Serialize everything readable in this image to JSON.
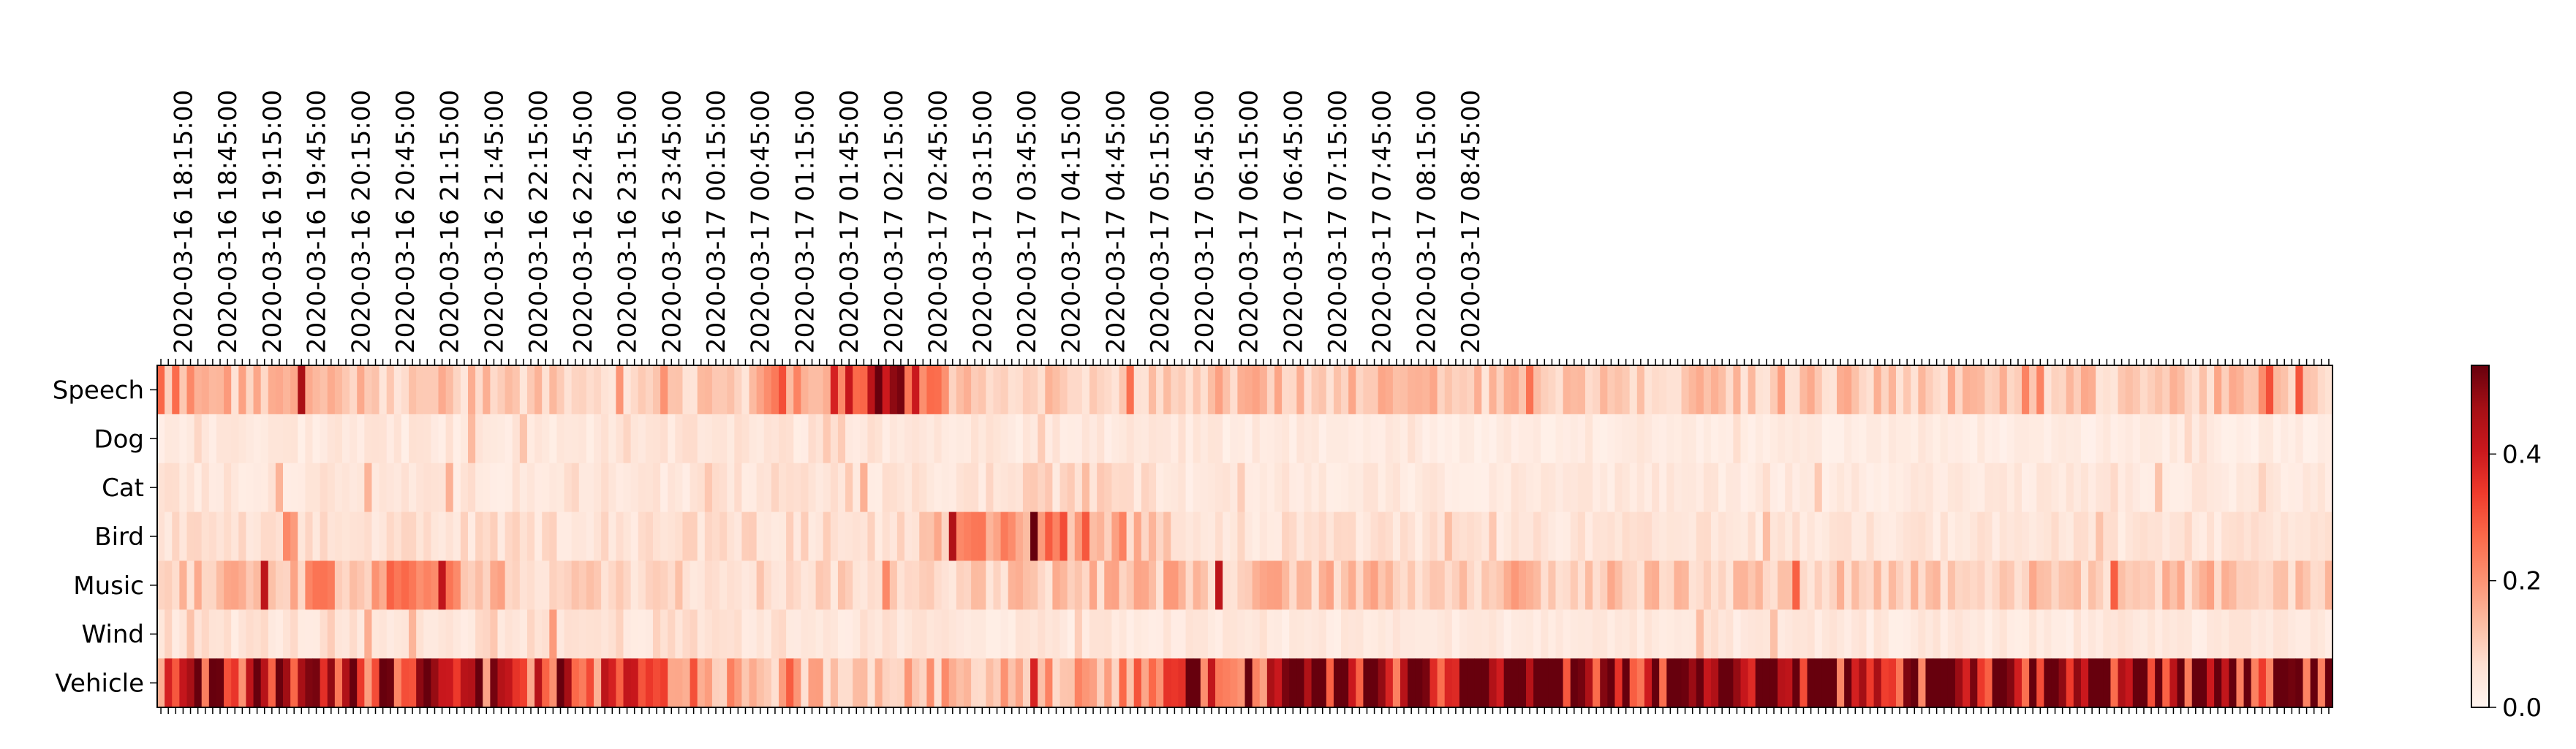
{
  "chart_data": {
    "type": "heatmap",
    "title": "",
    "xlabel": "",
    "ylabel": "",
    "rows": [
      "Speech",
      "Dog",
      "Cat",
      "Bird",
      "Music",
      "Wind",
      "Vehicle"
    ],
    "x_tick_labels": [
      "2020-03-16 18:15:00",
      "2020-03-16 18:45:00",
      "2020-03-16 19:15:00",
      "2020-03-16 19:45:00",
      "2020-03-16 20:15:00",
      "2020-03-16 20:45:00",
      "2020-03-16 21:15:00",
      "2020-03-16 21:45:00",
      "2020-03-16 22:15:00",
      "2020-03-16 22:45:00",
      "2020-03-16 23:15:00",
      "2020-03-16 23:45:00",
      "2020-03-17 00:15:00",
      "2020-03-17 00:45:00",
      "2020-03-17 01:15:00",
      "2020-03-17 01:45:00",
      "2020-03-17 02:15:00",
      "2020-03-17 02:45:00",
      "2020-03-17 03:15:00",
      "2020-03-17 03:45:00",
      "2020-03-17 04:15:00",
      "2020-03-17 04:45:00",
      "2020-03-17 05:15:00",
      "2020-03-17 05:45:00",
      "2020-03-17 06:15:00",
      "2020-03-17 06:45:00",
      "2020-03-17 07:15:00",
      "2020-03-17 07:45:00",
      "2020-03-17 08:15:00",
      "2020-03-17 08:45:00"
    ],
    "x_tick_position": "top",
    "x_tick_rotation": 90,
    "colormap": "Reds",
    "colorbar": {
      "vmin": 0.0,
      "vmax": 0.54,
      "ticks": [
        0.0,
        0.2,
        0.4
      ],
      "tick_labels": [
        "0.0",
        "0.2",
        "0.4"
      ],
      "placement": "right"
    },
    "colors": {
      "low": "#fff5f0",
      "mid": "#fb6a4a",
      "high": "#67000d"
    },
    "column_count": 294,
    "column_interval_minutes": 5,
    "profiles": {
      "Speech": [
        {
          "x": "2020-03-16 18:00:00",
          "value": 0.2
        },
        {
          "x": "2020-03-16 18:30:00",
          "value": 0.12
        },
        {
          "x": "2020-03-16 19:30:00",
          "value": 0.14
        },
        {
          "x": "2020-03-16 20:30:00",
          "value": 0.11
        },
        {
          "x": "2020-03-16 22:00:00",
          "value": 0.1
        },
        {
          "x": "2020-03-17 00:30:00",
          "value": 0.09
        },
        {
          "x": "2020-03-17 01:05:00",
          "value": 0.22
        },
        {
          "x": "2020-03-17 01:15:00",
          "value": 0.16
        },
        {
          "x": "2020-03-17 02:15:00",
          "value": 0.38
        },
        {
          "x": "2020-03-17 03:00:00",
          "value": 0.1
        },
        {
          "x": "2020-03-17 06:00:00",
          "value": 0.12
        },
        {
          "x": "2020-03-17 09:05:00",
          "value": 0.11
        }
      ],
      "Dog": [
        {
          "x": "2020-03-16 18:00:00",
          "value": 0.04
        },
        {
          "x": "2020-03-17 01:10:00",
          "value": 0.05
        },
        {
          "x": "2020-03-17 09:05:00",
          "value": 0.03
        }
      ],
      "Cat": [
        {
          "x": "2020-03-16 18:00:00",
          "value": 0.05
        },
        {
          "x": "2020-03-17 03:00:00",
          "value": 0.05
        },
        {
          "x": "2020-03-17 04:30:00",
          "value": 0.09
        },
        {
          "x": "2020-03-17 05:30:00",
          "value": 0.04
        },
        {
          "x": "2020-03-17 09:05:00",
          "value": 0.04
        }
      ],
      "Bird": [
        {
          "x": "2020-03-16 18:00:00",
          "value": 0.06
        },
        {
          "x": "2020-03-17 02:30:00",
          "value": 0.07
        },
        {
          "x": "2020-03-17 03:00:00",
          "value": 0.15
        },
        {
          "x": "2020-03-17 04:20:00",
          "value": 0.24
        },
        {
          "x": "2020-03-17 05:00:00",
          "value": 0.14
        },
        {
          "x": "2020-03-17 05:30:00",
          "value": 0.06
        },
        {
          "x": "2020-03-17 09:05:00",
          "value": 0.05
        }
      ],
      "Music": [
        {
          "x": "2020-03-16 18:00:00",
          "value": 0.1
        },
        {
          "x": "2020-03-16 21:15:00",
          "value": 0.22
        },
        {
          "x": "2020-03-16 22:00:00",
          "value": 0.09
        },
        {
          "x": "2020-03-17 02:00:00",
          "value": 0.08
        },
        {
          "x": "2020-03-17 05:15:00",
          "value": 0.13
        },
        {
          "x": "2020-03-17 07:00:00",
          "value": 0.12
        },
        {
          "x": "2020-03-17 09:05:00",
          "value": 0.11
        }
      ],
      "Wind": [
        {
          "x": "2020-03-16 18:00:00",
          "value": 0.06
        },
        {
          "x": "2020-03-16 21:00:00",
          "value": 0.05
        },
        {
          "x": "2020-03-16 22:00:00",
          "value": 0.07
        },
        {
          "x": "2020-03-17 02:00:00",
          "value": 0.05
        },
        {
          "x": "2020-03-17 05:30:00",
          "value": 0.04
        },
        {
          "x": "2020-03-17 09:05:00",
          "value": 0.04
        }
      ],
      "Vehicle": [
        {
          "x": "2020-03-16 18:00:00",
          "value": 0.28
        },
        {
          "x": "2020-03-16 18:45:00",
          "value": 0.42
        },
        {
          "x": "2020-03-16 19:30:00",
          "value": 0.33
        },
        {
          "x": "2020-03-16 20:30:00",
          "value": 0.4
        },
        {
          "x": "2020-03-16 21:15:00",
          "value": 0.36
        },
        {
          "x": "2020-03-16 22:30:00",
          "value": 0.31
        },
        {
          "x": "2020-03-16 23:30:00",
          "value": 0.28
        },
        {
          "x": "2020-03-17 00:30:00",
          "value": 0.14
        },
        {
          "x": "2020-03-17 02:00:00",
          "value": 0.12
        },
        {
          "x": "2020-03-17 04:00:00",
          "value": 0.17
        },
        {
          "x": "2020-03-17 05:00:00",
          "value": 0.2
        },
        {
          "x": "2020-03-17 05:30:00",
          "value": 0.36
        },
        {
          "x": "2020-03-17 06:30:00",
          "value": 0.4
        },
        {
          "x": "2020-03-17 07:45:00",
          "value": 0.46
        },
        {
          "x": "2020-03-17 08:30:00",
          "value": 0.44
        },
        {
          "x": "2020-03-17 09:05:00",
          "value": 0.48
        }
      ]
    }
  }
}
